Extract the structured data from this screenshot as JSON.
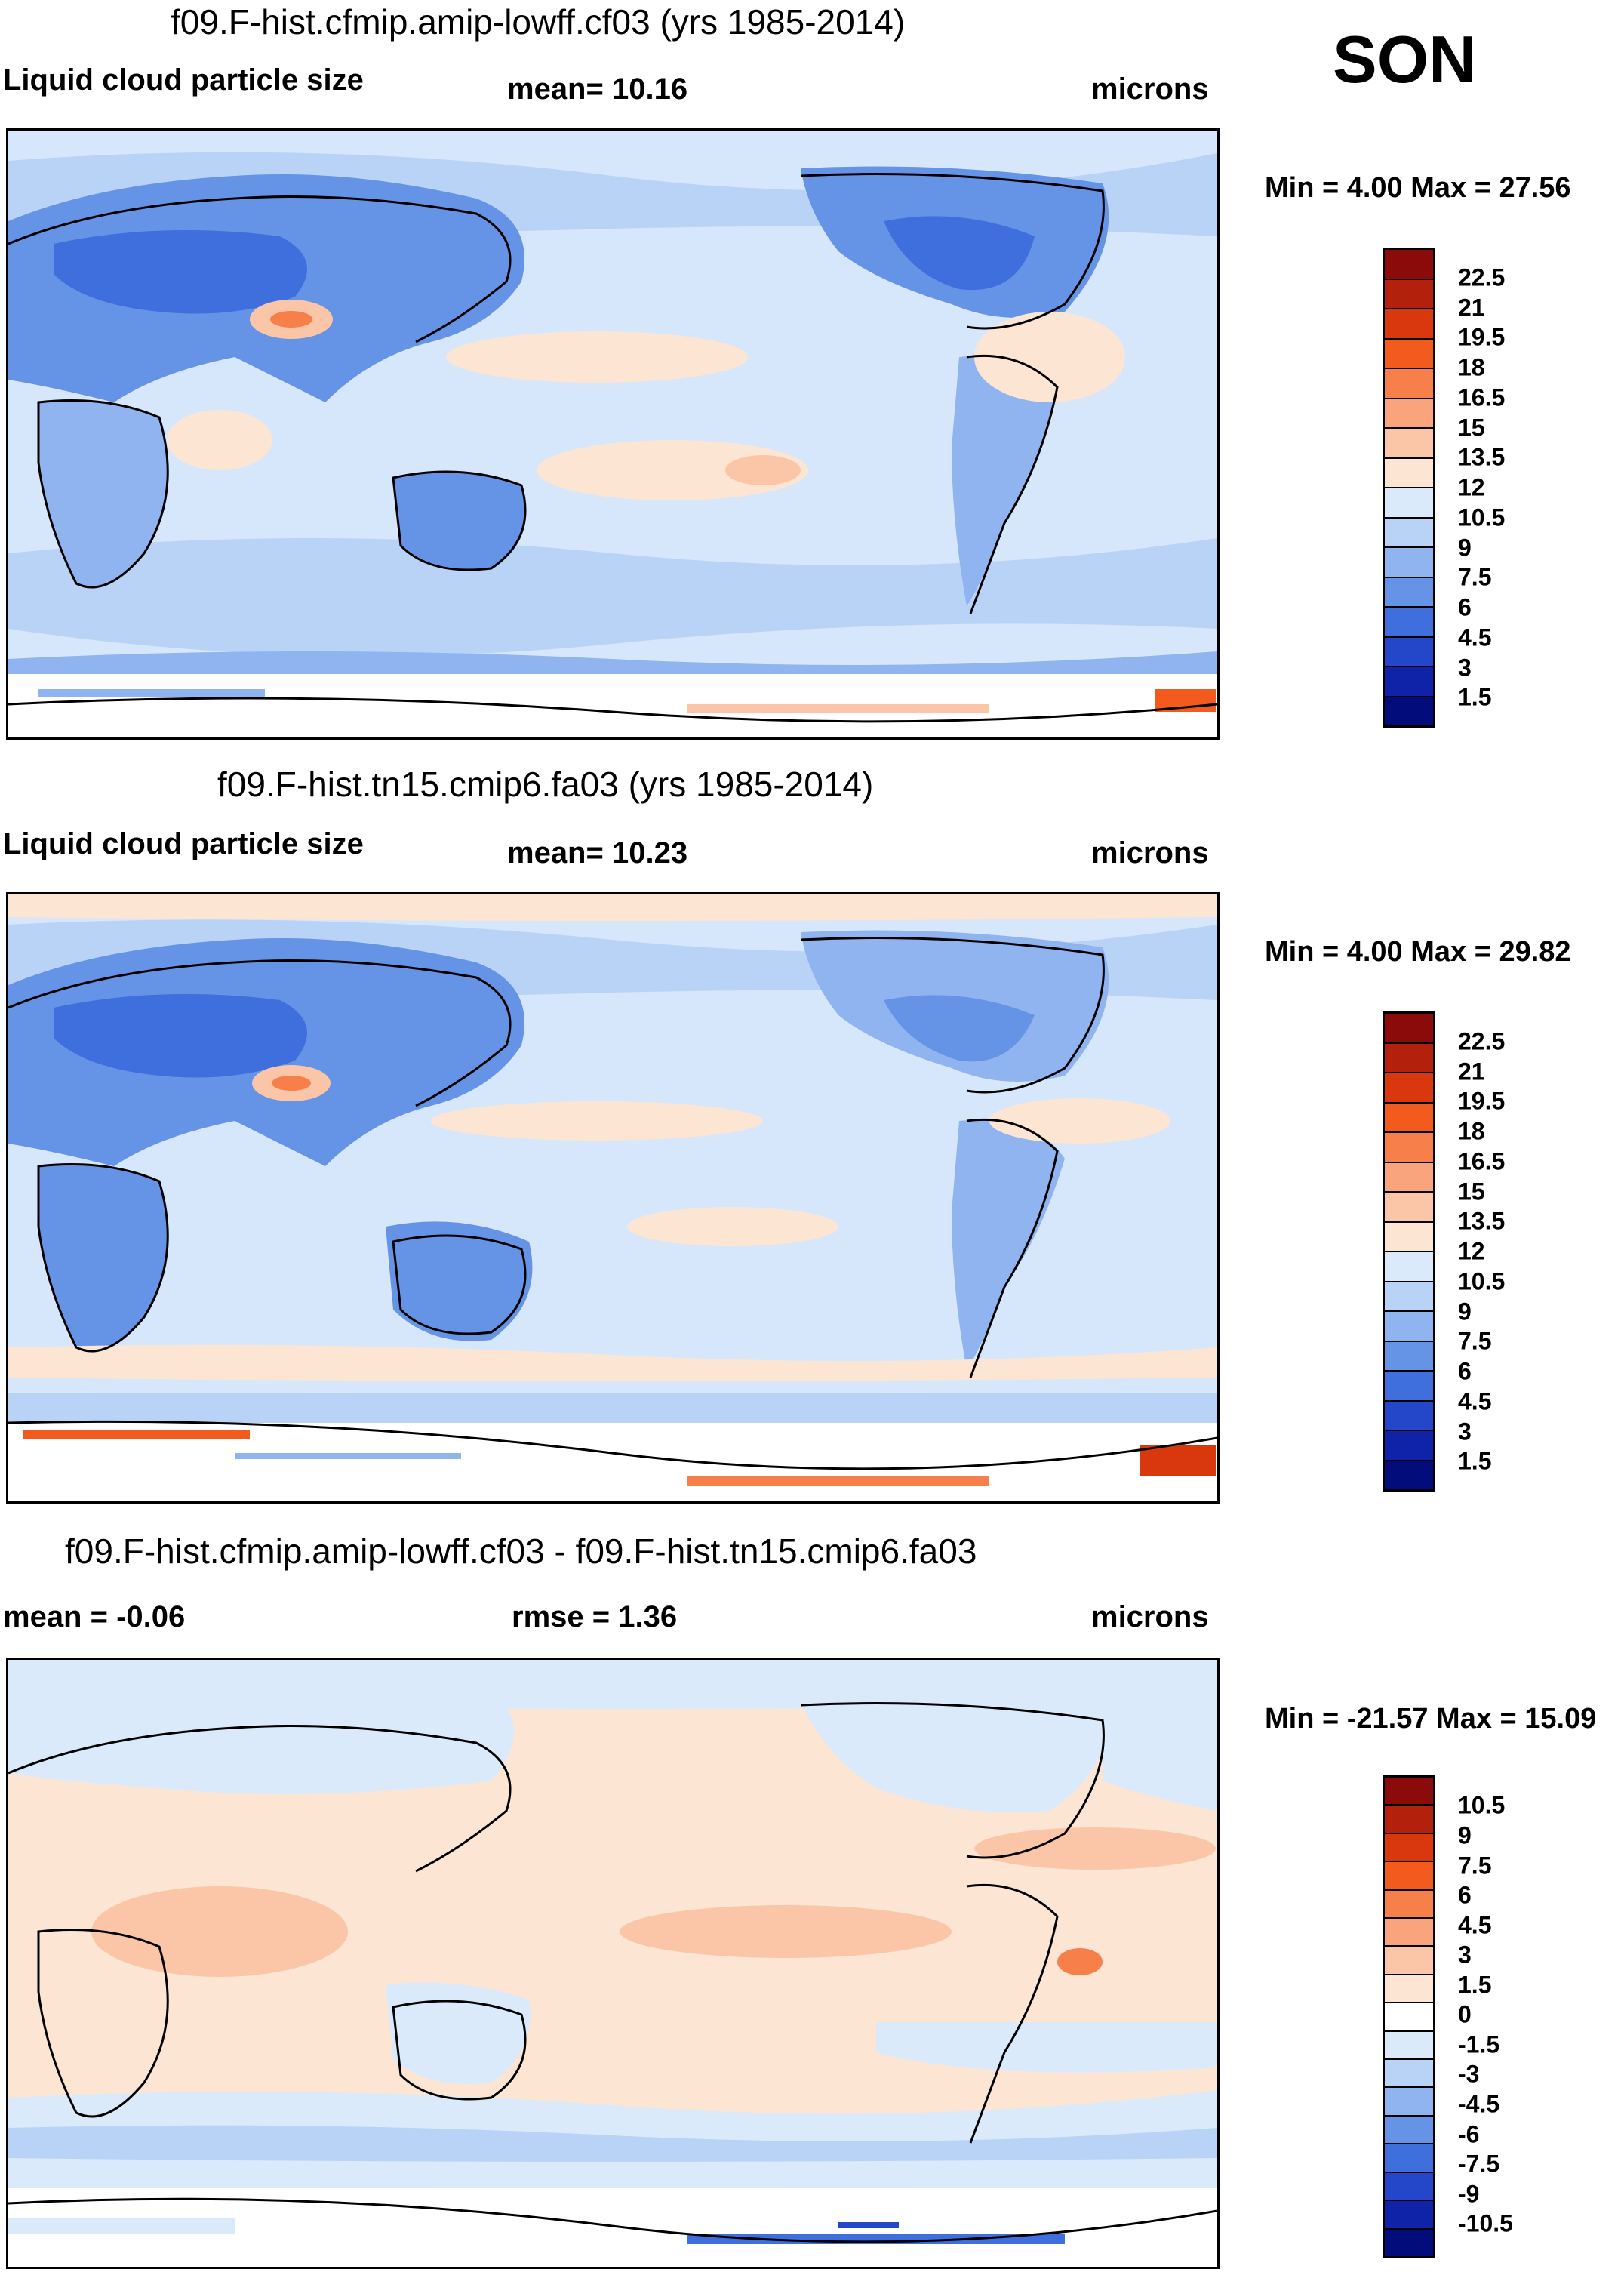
{
  "season": "SON",
  "panels": [
    {
      "title": "f09.F-hist.cfmip.amip-lowff.cf03 (yrs 1985-2014)",
      "left_label": "Liquid cloud particle size",
      "mid_label": "mean=  10.16",
      "units": "microns",
      "minmax": "Min =   4.00 Max =  27.56",
      "ticks": [
        "22.5",
        "21",
        "19.5",
        "18",
        "16.5",
        "15",
        "13.5",
        "12",
        "10.5",
        "9",
        "7.5",
        "6",
        "4.5",
        "3",
        "1.5"
      ],
      "colors": [
        "#8b0a0a",
        "#b3210d",
        "#d9380f",
        "#f25a1e",
        "#f7804a",
        "#f9a47c",
        "#fbc6a8",
        "#fde5d4",
        "#dbeafb",
        "#b9d3f7",
        "#8fb4f0",
        "#6593e6",
        "#3e6fdc",
        "#2347c8",
        "#0e23a8",
        "#020c7a"
      ]
    },
    {
      "title": "f09.F-hist.tn15.cmip6.fa03 (yrs 1985-2014)",
      "left_label": "Liquid cloud particle size",
      "mid_label": "mean=  10.23",
      "units": "microns",
      "minmax": "Min =   4.00 Max =  29.82",
      "ticks": [
        "22.5",
        "21",
        "19.5",
        "18",
        "16.5",
        "15",
        "13.5",
        "12",
        "10.5",
        "9",
        "7.5",
        "6",
        "4.5",
        "3",
        "1.5"
      ],
      "colors": [
        "#8b0a0a",
        "#b3210d",
        "#d9380f",
        "#f25a1e",
        "#f7804a",
        "#f9a47c",
        "#fbc6a8",
        "#fde5d4",
        "#dbeafb",
        "#b9d3f7",
        "#8fb4f0",
        "#6593e6",
        "#3e6fdc",
        "#2347c8",
        "#0e23a8",
        "#020c7a"
      ]
    },
    {
      "title": "f09.F-hist.cfmip.amip-lowff.cf03 - f09.F-hist.tn15.cmip6.fa03",
      "left_label": "mean =  -0.06",
      "mid_label": "rmse =   1.36",
      "units": "microns",
      "minmax": "Min = -21.57 Max =  15.09",
      "ticks": [
        "10.5",
        "9",
        "7.5",
        "6",
        "4.5",
        "3",
        "1.5",
        "0",
        "-1.5",
        "-3",
        "-4.5",
        "-6",
        "-7.5",
        "-9",
        "-10.5"
      ],
      "colors": [
        "#8b0a0a",
        "#b3210d",
        "#d9380f",
        "#f25a1e",
        "#f7804a",
        "#f9a47c",
        "#fbc6a8",
        "#fde5d4",
        "#ffffff",
        "#dbeafb",
        "#b9d3f7",
        "#8fb4f0",
        "#6593e6",
        "#3e6fdc",
        "#2347c8",
        "#0e23a8",
        "#020c7a"
      ]
    }
  ]
}
